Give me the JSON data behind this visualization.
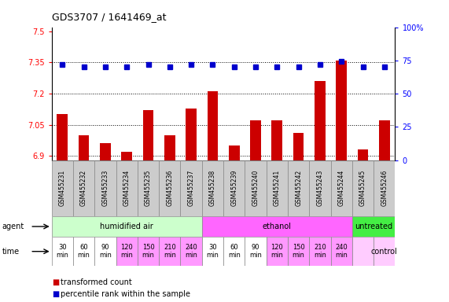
{
  "title": "GDS3707 / 1641469_at",
  "samples": [
    "GSM455231",
    "GSM455232",
    "GSM455233",
    "GSM455234",
    "GSM455235",
    "GSM455236",
    "GSM455237",
    "GSM455238",
    "GSM455239",
    "GSM455240",
    "GSM455241",
    "GSM455242",
    "GSM455243",
    "GSM455244",
    "GSM455245",
    "GSM455246"
  ],
  "bar_values": [
    7.1,
    7.0,
    6.96,
    6.92,
    7.12,
    7.0,
    7.13,
    7.21,
    6.95,
    7.07,
    7.07,
    7.01,
    7.26,
    7.36,
    6.93,
    7.07
  ],
  "dot_values": [
    72,
    70,
    70,
    70,
    72,
    70,
    72,
    72,
    70,
    70,
    70,
    70,
    72,
    74,
    70,
    70
  ],
  "bar_color": "#cc0000",
  "dot_color": "#0000cc",
  "ylim_left": [
    6.88,
    7.52
  ],
  "ylim_right": [
    0,
    100
  ],
  "yticks_left": [
    6.9,
    7.05,
    7.2,
    7.35,
    7.5
  ],
  "yticks_right": [
    0,
    25,
    50,
    75,
    100
  ],
  "ytick_labels_left": [
    "6.9",
    "7.05",
    "7.2",
    "7.35",
    "7.5"
  ],
  "ytick_labels_right": [
    "0",
    "25",
    "50",
    "75",
    "100%"
  ],
  "hlines": [
    6.9,
    7.05,
    7.2,
    7.35
  ],
  "agent_groups": [
    {
      "label": "humidified air",
      "start": 0,
      "end": 7,
      "color": "#ccffcc"
    },
    {
      "label": "ethanol",
      "start": 7,
      "end": 14,
      "color": "#ff66ff"
    },
    {
      "label": "untreated",
      "start": 14,
      "end": 16,
      "color": "#44ee44"
    }
  ],
  "time_labels": [
    "30\nmin",
    "60\nmin",
    "90\nmin",
    "120\nmin",
    "150\nmin",
    "210\nmin",
    "240\nmin",
    "30\nmin",
    "60\nmin",
    "90\nmin",
    "120\nmin",
    "150\nmin",
    "210\nmin",
    "240\nmin",
    "",
    "control"
  ],
  "time_colors": [
    "#ffffff",
    "#ffffff",
    "#ffffff",
    "#ff99ff",
    "#ff99ff",
    "#ff99ff",
    "#ff99ff",
    "#ffffff",
    "#ffffff",
    "#ffffff",
    "#ff99ff",
    "#ff99ff",
    "#ff99ff",
    "#ff99ff",
    "#ffccff",
    "#ffccff"
  ],
  "agent_label": "agent",
  "time_label": "time",
  "legend_bar": "transformed count",
  "legend_dot": "percentile rank within the sample",
  "bar_width": 0.5,
  "sample_bg": "#cccccc",
  "fig_bg": "#ffffff"
}
